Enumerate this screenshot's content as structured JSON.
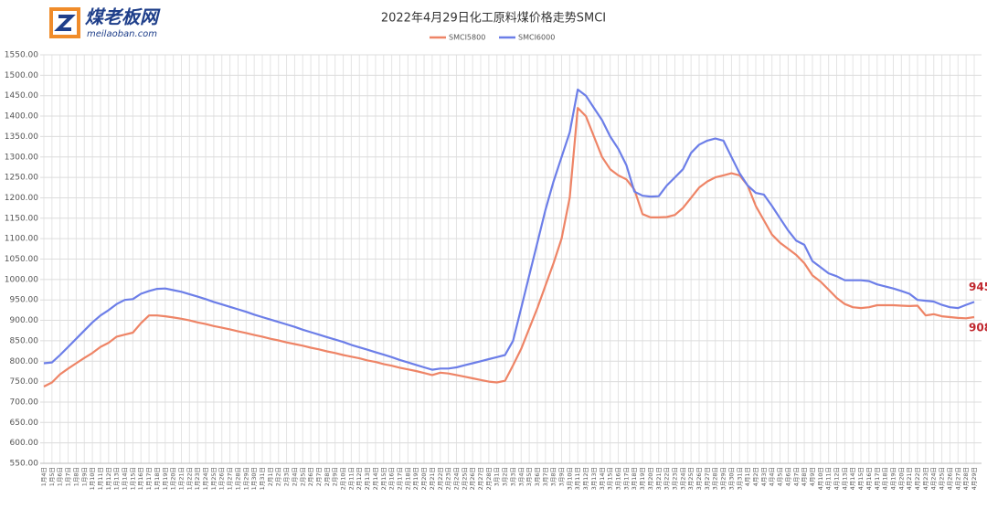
{
  "logo": {
    "name": "煤老板网",
    "url": "meilaoban.com"
  },
  "chart_data": {
    "type": "line",
    "title": "2022年4月29日化工原料煤价格走势SMCI",
    "categories": [
      "1月4日",
      "1月5日",
      "1月6日",
      "1月7日",
      "1月8日",
      "1月9日",
      "1月10日",
      "1月11日",
      "1月12日",
      "1月13日",
      "1月14日",
      "1月15日",
      "1月16日",
      "1月17日",
      "1月18日",
      "1月19日",
      "1月20日",
      "1月21日",
      "1月22日",
      "1月23日",
      "1月24日",
      "1月25日",
      "1月26日",
      "1月27日",
      "1月28日",
      "1月29日",
      "1月30日",
      "1月31日",
      "2月1日",
      "2月2日",
      "2月3日",
      "2月4日",
      "2月5日",
      "2月6日",
      "2月7日",
      "2月8日",
      "2月9日",
      "2月10日",
      "2月11日",
      "2月12日",
      "2月13日",
      "2月14日",
      "2月15日",
      "2月16日",
      "2月17日",
      "2月18日",
      "2月19日",
      "2月20日",
      "2月21日",
      "2月22日",
      "2月23日",
      "2月24日",
      "2月25日",
      "2月26日",
      "2月27日",
      "2月28日",
      "3月1日",
      "3月2日",
      "3月3日",
      "3月4日",
      "3月5日",
      "3月6日",
      "3月7日",
      "3月8日",
      "3月9日",
      "3月10日",
      "3月11日",
      "3月12日",
      "3月13日",
      "3月14日",
      "3月15日",
      "3月16日",
      "3月17日",
      "3月18日",
      "3月19日",
      "3月20日",
      "3月21日",
      "3月22日",
      "3月23日",
      "3月24日",
      "3月25日",
      "3月26日",
      "3月27日",
      "3月28日",
      "3月29日",
      "3月30日",
      "3月31日",
      "4月1日",
      "4月2日",
      "4月3日",
      "4月4日",
      "4月5日",
      "4月6日",
      "4月7日",
      "4月8日",
      "4月9日",
      "4月10日",
      "4月11日",
      "4月12日",
      "4月13日",
      "4月14日",
      "4月15日",
      "4月16日",
      "4月17日",
      "4月18日",
      "4月19日",
      "4月20日",
      "4月21日",
      "4月22日",
      "4月23日",
      "4月24日",
      "4月25日",
      "4月26日",
      "4月27日",
      "4月28日",
      "4月29日"
    ],
    "series": [
      {
        "name": "SMCI5800",
        "color": "#ee8466",
        "values": [
          738,
          748,
          768,
          782,
          795,
          808,
          820,
          835,
          845,
          860,
          865,
          870,
          893,
          912,
          912,
          910,
          907,
          904,
          900,
          895,
          891,
          886,
          882,
          878,
          873,
          869,
          864,
          860,
          855,
          851,
          846,
          842,
          838,
          833,
          829,
          824,
          820,
          815,
          811,
          807,
          802,
          798,
          793,
          789,
          784,
          780,
          776,
          771,
          766,
          772,
          770,
          766,
          762,
          758,
          754,
          750,
          748,
          752,
          790,
          830,
          880,
          930,
          985,
          1040,
          1100,
          1200,
          1420,
          1400,
          1350,
          1300,
          1270,
          1255,
          1245,
          1220,
          1160,
          1152,
          1152,
          1153,
          1158,
          1175,
          1200,
          1225,
          1240,
          1250,
          1255,
          1260,
          1255,
          1230,
          1180,
          1145,
          1110,
          1090,
          1075,
          1060,
          1040,
          1010,
          995,
          975,
          955,
          940,
          932,
          930,
          932,
          937,
          937,
          937,
          936,
          935,
          936,
          912,
          915,
          910,
          908,
          906,
          905,
          908
        ]
      },
      {
        "name": "SMCI6000",
        "color": "#6c7ee8",
        "values": [
          795,
          797,
          815,
          835,
          855,
          875,
          895,
          912,
          925,
          940,
          950,
          952,
          965,
          972,
          977,
          978,
          974,
          970,
          964,
          958,
          952,
          945,
          939,
          933,
          927,
          921,
          914,
          908,
          902,
          896,
          890,
          884,
          877,
          871,
          865,
          859,
          853,
          847,
          840,
          834,
          828,
          822,
          816,
          810,
          803,
          797,
          791,
          785,
          779,
          782,
          782,
          785,
          790,
          795,
          800,
          805,
          810,
          815,
          850,
          930,
          1010,
          1090,
          1170,
          1240,
          1300,
          1360,
          1465,
          1450,
          1420,
          1390,
          1350,
          1320,
          1280,
          1215,
          1205,
          1203,
          1204,
          1230,
          1250,
          1270,
          1310,
          1330,
          1340,
          1345,
          1340,
          1300,
          1260,
          1230,
          1212,
          1208,
          1180,
          1150,
          1120,
          1095,
          1085,
          1045,
          1030,
          1015,
          1008,
          998,
          998,
          998,
          996,
          988,
          983,
          978,
          972,
          965,
          950,
          948,
          946,
          938,
          932,
          930,
          938,
          945
        ]
      }
    ],
    "ylim": [
      550,
      1550
    ],
    "yticks": [
      {
        "value": 550,
        "label": "550.00"
      },
      {
        "value": 600,
        "label": "600.00"
      },
      {
        "value": 650,
        "label": "650.00"
      },
      {
        "value": 700,
        "label": "700.00"
      },
      {
        "value": 750,
        "label": "750.00"
      },
      {
        "value": 800,
        "label": "800.00"
      },
      {
        "value": 850,
        "label": "850.00"
      },
      {
        "value": 900,
        "label": "900.00"
      },
      {
        "value": 950,
        "label": "950.00"
      },
      {
        "value": 1000,
        "label": "1000.00"
      },
      {
        "value": 1050,
        "label": "1050.00"
      },
      {
        "value": 1100,
        "label": "1100.00"
      },
      {
        "value": 1150,
        "label": "1150.00"
      },
      {
        "value": 1200,
        "label": "1200.00"
      },
      {
        "value": 1250,
        "label": "1250.00"
      },
      {
        "value": 1300,
        "label": "1300.00"
      },
      {
        "value": 1350,
        "label": "1350.00"
      },
      {
        "value": 1400,
        "label": "1400.00"
      },
      {
        "value": 1450,
        "label": "1450.00"
      },
      {
        "value": 1500,
        "label": "1500.00"
      },
      {
        "value": 1550,
        "label": "1550.00"
      }
    ],
    "grid": true,
    "legend": "top"
  }
}
